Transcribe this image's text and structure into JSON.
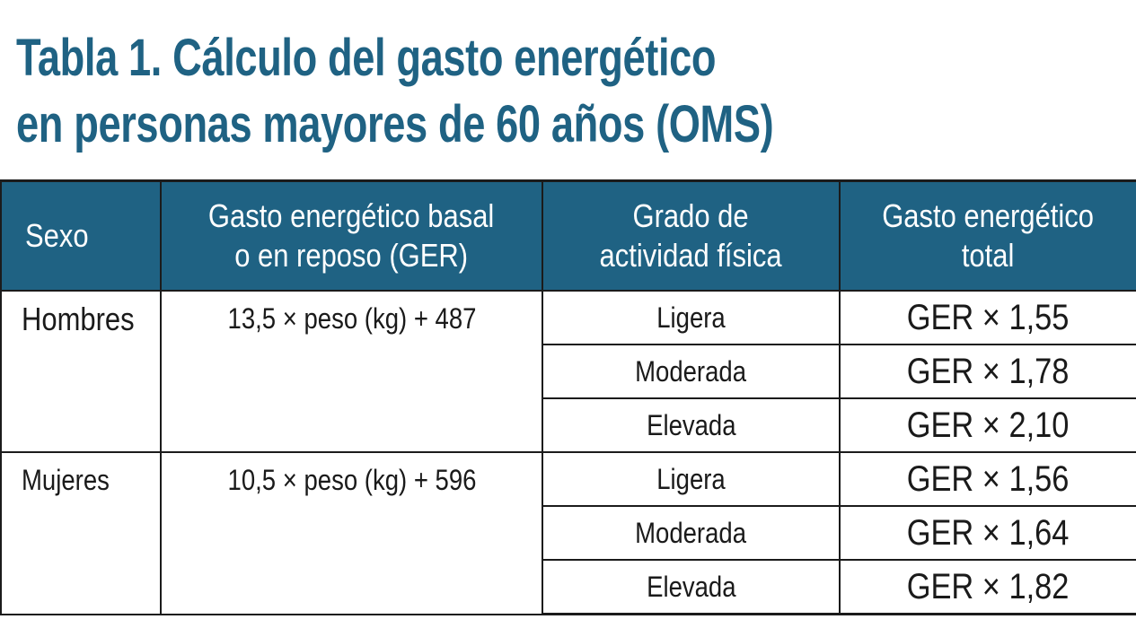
{
  "title": {
    "line1": "Tabla 1. Cálculo del gasto energético",
    "line2": "en personas mayores de 60 años (OMS)"
  },
  "table": {
    "headers": [
      {
        "lines": [
          "Sexo"
        ]
      },
      {
        "lines": [
          "Gasto energético basal",
          "o en reposo (GER)"
        ]
      },
      {
        "lines": [
          "Grado de",
          "actividad física"
        ]
      },
      {
        "lines": [
          "Gasto energético",
          "total"
        ]
      }
    ],
    "groups": [
      {
        "sex": "Hombres",
        "formula": "13,5 × peso (kg) + 487",
        "rows": [
          {
            "level": "Ligera",
            "total": "GER × 1,55"
          },
          {
            "level": "Moderada",
            "total": "GER × 1,78"
          },
          {
            "level": "Elevada",
            "total": "GER × 2,10"
          }
        ]
      },
      {
        "sex": "Mujeres",
        "formula": "10,5 × peso (kg) + 596",
        "rows": [
          {
            "level": "Ligera",
            "total": "GER × 1,56"
          },
          {
            "level": "Moderada",
            "total": "GER × 1,64"
          },
          {
            "level": "Elevada",
            "total": "GER × 1,82"
          }
        ]
      }
    ]
  },
  "colors": {
    "accent": "#1f6283",
    "header_text": "#ffffff",
    "body_text": "#1a1a1a",
    "border": "#1b1b1b"
  }
}
